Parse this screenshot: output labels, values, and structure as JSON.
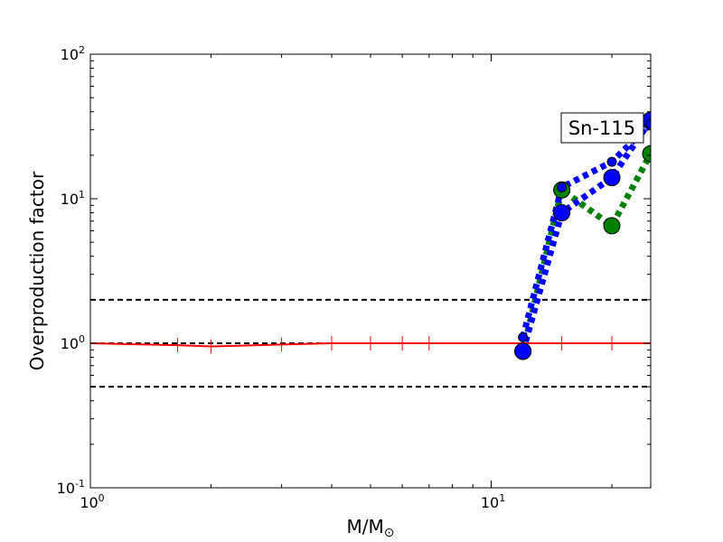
{
  "chart_data": {
    "type": "line",
    "xscale": "log",
    "yscale": "log",
    "xlim": [
      1,
      25
    ],
    "ylim": [
      0.1,
      100
    ],
    "xlabel": "M/M",
    "xlabel_sub": "⊙",
    "ylabel": "Overproduction factor",
    "grid": false,
    "xticks": [
      {
        "value": 1,
        "base": "10",
        "exp": "0"
      },
      {
        "value": 10,
        "base": "10",
        "exp": "1"
      }
    ],
    "yticks": [
      {
        "value": 0.1,
        "base": "10",
        "exp": "-1"
      },
      {
        "value": 1,
        "base": "10",
        "exp": "0"
      },
      {
        "value": 10,
        "base": "10",
        "exp": "1"
      },
      {
        "value": 100,
        "base": "10",
        "exp": "2"
      }
    ],
    "annotation": "Sn-115",
    "reference_lines": [
      {
        "y": 2,
        "color": "#000000",
        "style": "dashed"
      },
      {
        "y": 1,
        "color": "#000000",
        "style": "dashed"
      },
      {
        "y": 0.5,
        "color": "#000000",
        "style": "dashed"
      }
    ],
    "series": [
      {
        "color": "#ff0000",
        "style": "solid",
        "marker": "tick",
        "x": [
          1,
          1.65,
          2,
          3,
          4,
          5,
          6,
          7,
          12,
          15,
          20,
          25
        ],
        "y": [
          1.0,
          0.97,
          0.95,
          0.98,
          1.0,
          1.0,
          1.0,
          1.0,
          1.0,
          1.0,
          1.0,
          1.0
        ]
      },
      {
        "color": "#008000",
        "style": "dotted",
        "marker": "circle",
        "x": [
          12,
          15,
          20,
          25
        ],
        "y": [
          0.88,
          11.5,
          6.5,
          20.5
        ]
      },
      {
        "color": "#0000ff",
        "style": "dotted",
        "marker": "circle",
        "x": [
          12,
          15,
          20,
          25
        ],
        "y": [
          0.88,
          8.0,
          14.0,
          35.0
        ]
      },
      {
        "color": "#0000ff",
        "style": "dotted",
        "marker": "small-circle",
        "x": [
          12,
          15,
          20,
          25
        ],
        "y": [
          1.1,
          12.0,
          18.0,
          33.0
        ]
      }
    ]
  }
}
